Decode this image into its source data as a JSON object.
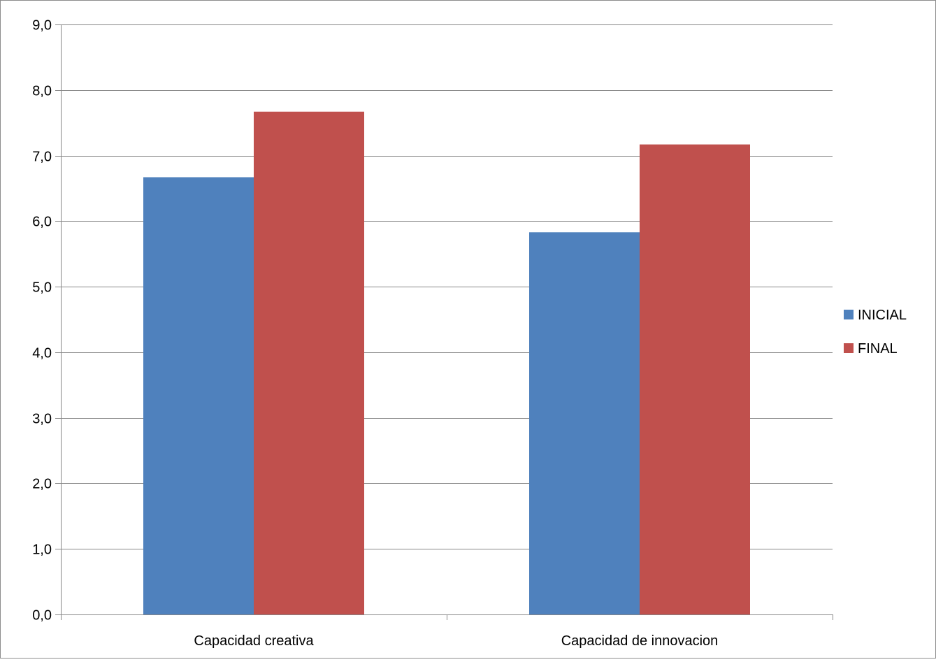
{
  "chart_data": {
    "type": "bar",
    "title": "",
    "xlabel": "",
    "ylabel": "",
    "categories": [
      "Capacidad creativa",
      "Capacidad de innovacion"
    ],
    "series": [
      {
        "name": "INICIAL",
        "values": [
          6.67,
          5.83
        ],
        "color": "#4f81bd"
      },
      {
        "name": "FINAL",
        "values": [
          7.67,
          7.17
        ],
        "color": "#c0504d"
      }
    ],
    "ylim": [
      0,
      9
    ],
    "yticks": [
      "0,0",
      "1,0",
      "2,0",
      "3,0",
      "4,0",
      "5,0",
      "6,0",
      "7,0",
      "8,0",
      "9,0"
    ],
    "grid": true,
    "legend_position": "right"
  }
}
